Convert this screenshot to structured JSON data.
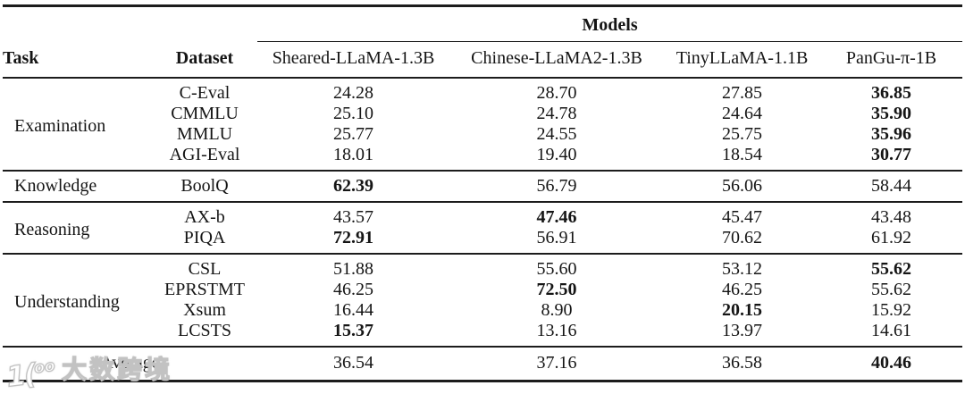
{
  "page": {
    "background": "#ffffff",
    "text_color": "#151515",
    "rule_color": "#1c1c1c"
  },
  "table": {
    "models_header": "Models",
    "col_headers": {
      "task": "Task",
      "dataset": "Dataset"
    },
    "model_columns": [
      "Sheared-LLaMA-1.3B",
      "Chinese-LLaMA2-1.3B",
      "TinyLLaMA-1.1B",
      "PanGu-π-1B"
    ],
    "sections": [
      {
        "task": "Examination",
        "rows": [
          {
            "dataset": "C-Eval",
            "values": [
              "24.28",
              "28.70",
              "27.85",
              "36.85"
            ],
            "bold": 3
          },
          {
            "dataset": "CMMLU",
            "values": [
              "25.10",
              "24.78",
              "24.64",
              "35.90"
            ],
            "bold": 3
          },
          {
            "dataset": "MMLU",
            "values": [
              "25.77",
              "24.55",
              "25.75",
              "35.96"
            ],
            "bold": 3
          },
          {
            "dataset": "AGI-Eval",
            "values": [
              "18.01",
              "19.40",
              "18.54",
              "30.77"
            ],
            "bold": 3
          }
        ]
      },
      {
        "task": "Knowledge",
        "rows": [
          {
            "dataset": "BoolQ",
            "values": [
              "62.39",
              "56.79",
              "56.06",
              "58.44"
            ],
            "bold": 0
          }
        ]
      },
      {
        "task": "Reasoning",
        "rows": [
          {
            "dataset": "AX-b",
            "values": [
              "43.57",
              "47.46",
              "45.47",
              "43.48"
            ],
            "bold": 1
          },
          {
            "dataset": "PIQA",
            "values": [
              "72.91",
              "56.91",
              "70.62",
              "61.92"
            ],
            "bold": 0
          }
        ]
      },
      {
        "task": "Understanding",
        "rows": [
          {
            "dataset": "CSL",
            "values": [
              "51.88",
              "55.60",
              "53.12",
              "55.62"
            ],
            "bold": 3
          },
          {
            "dataset": "EPRSTMT",
            "values": [
              "46.25",
              "72.50",
              "46.25",
              "55.62"
            ],
            "bold": 1
          },
          {
            "dataset": "Xsum",
            "values": [
              "16.44",
              "8.90",
              "20.15",
              "15.92"
            ],
            "bold": 2
          },
          {
            "dataset": "LCSTS",
            "values": [
              "15.37",
              "13.16",
              "13.97",
              "14.61"
            ],
            "bold": 0
          }
        ]
      }
    ],
    "average": {
      "label": "Average",
      "values": [
        "36.54",
        "37.16",
        "36.58",
        "40.46"
      ],
      "bold": 3
    }
  },
  "watermark": {
    "logo_main": "1(",
    "logo_sup": "oo",
    "brand": "大数跨境"
  }
}
